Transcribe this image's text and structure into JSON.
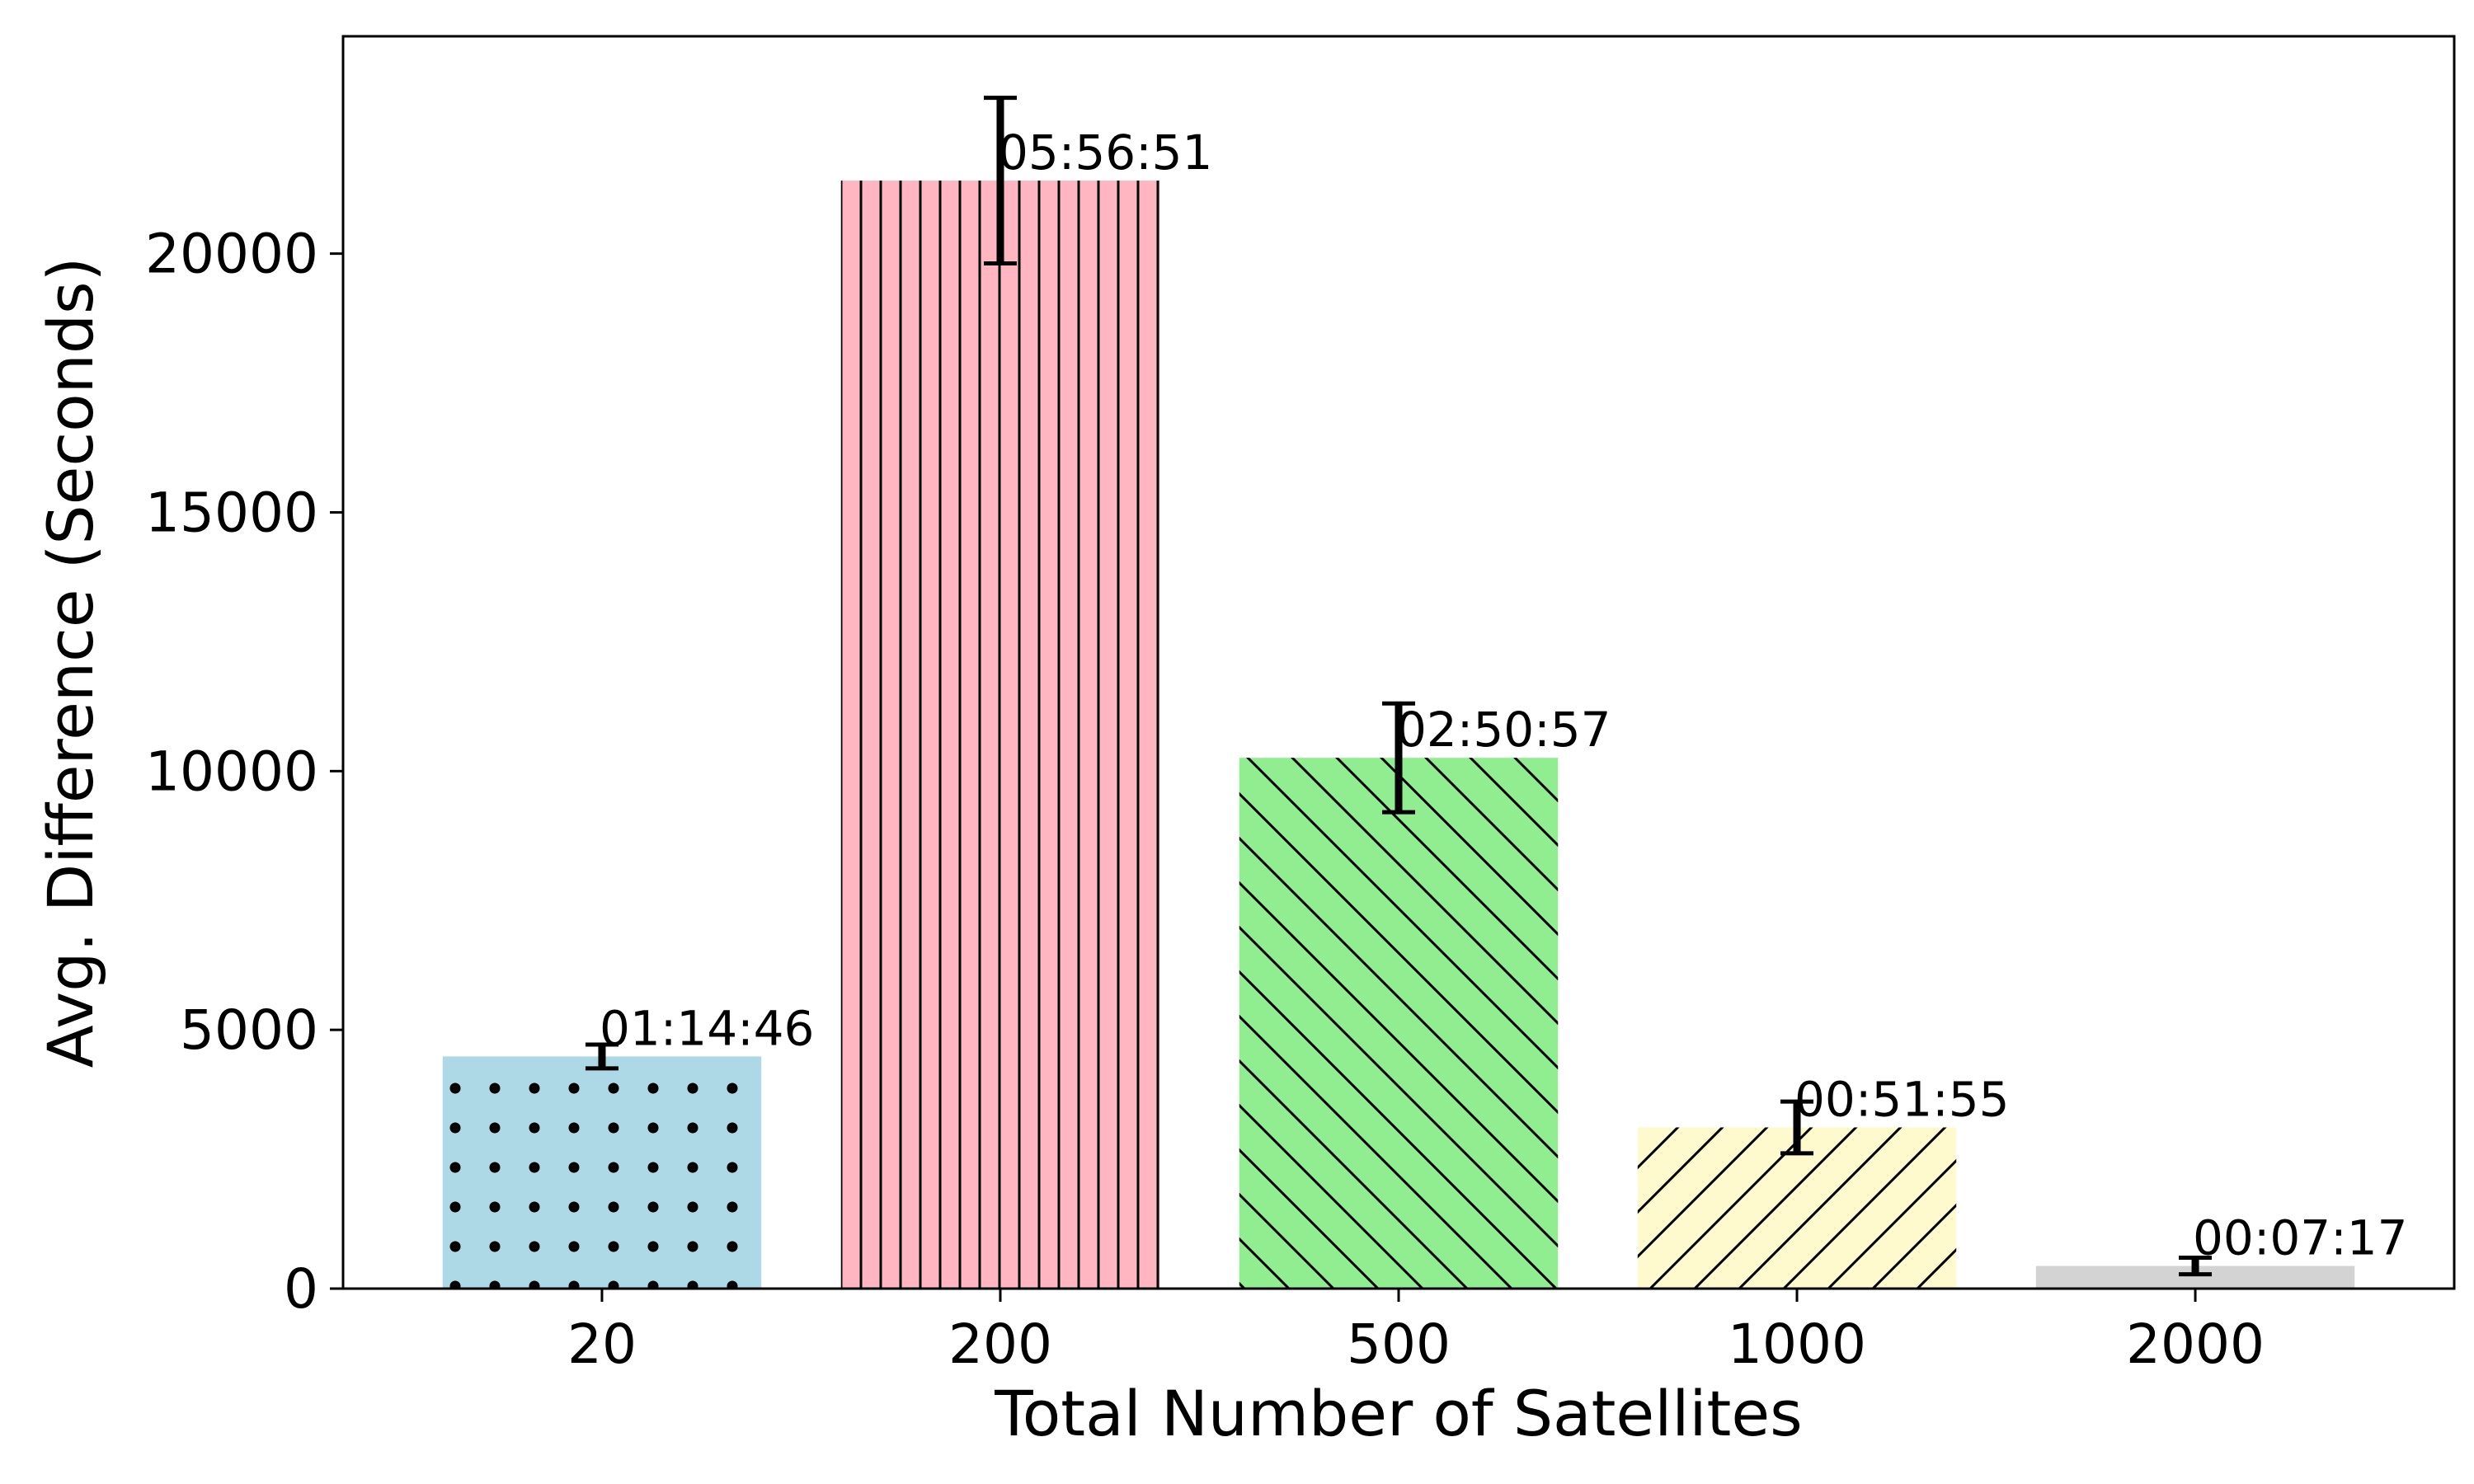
{
  "chart_data": {
    "type": "bar",
    "title": "",
    "xlabel": "Total Number of Satellites",
    "ylabel": "Avg. Difference (Seconds)",
    "categories": [
      "20",
      "200",
      "500",
      "1000",
      "2000"
    ],
    "values": [
      4486,
      21411,
      10257,
      3115,
      437
    ],
    "errors": [
      230,
      1600,
      1050,
      500,
      160
    ],
    "labels": [
      "01:14:46",
      "05:56:51",
      "02:50:57",
      "00:51:55",
      "00:07:17"
    ],
    "colors": [
      "#add8e6",
      "#ffb6c1",
      "#90ee90",
      "#fffacd",
      "#d3d3d3"
    ],
    "hatches": [
      "dots",
      "vertical",
      "backslash",
      "slash",
      "none"
    ],
    "ylim": [
      0,
      24200
    ],
    "yticks": [
      0,
      5000,
      10000,
      15000,
      20000
    ],
    "grid": false,
    "legend": "none"
  }
}
